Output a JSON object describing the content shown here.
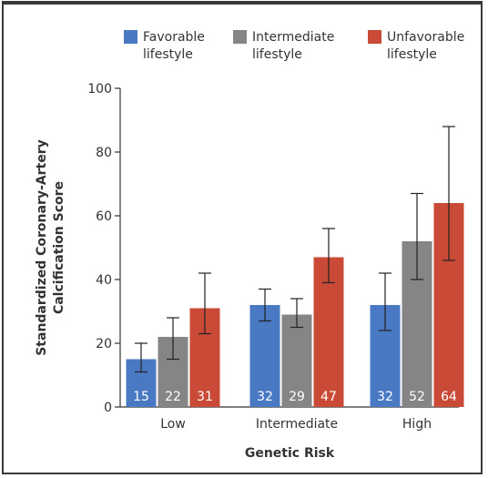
{
  "chart_data": {
    "type": "bar",
    "title": "",
    "xlabel": "Genetic Risk",
    "ylabel": "Standardized Coronary-Artery Calcification Score",
    "ylabel_lines": [
      "Standardized Coronary-Artery",
      "Calcification Score"
    ],
    "ylim": [
      0,
      100
    ],
    "yticks": [
      "0",
      "20",
      "40",
      "60",
      "80",
      "100"
    ],
    "categories": [
      "Low",
      "Intermediate",
      "High"
    ],
    "legend_position": "top",
    "series": [
      {
        "name": "Favorable lifestyle",
        "legend_lines": [
          "Favorable",
          "lifestyle"
        ],
        "color": "#4a79c4",
        "values": [
          15,
          32,
          32
        ],
        "labels": [
          "15",
          "32",
          "32"
        ],
        "err_low": [
          11,
          27,
          24
        ],
        "err_high": [
          20,
          37,
          42
        ]
      },
      {
        "name": "Intermediate lifestyle",
        "legend_lines": [
          "Intermediate",
          "lifestyle"
        ],
        "color": "#858585",
        "values": [
          22,
          29,
          52
        ],
        "labels": [
          "22",
          "29",
          "52"
        ],
        "err_low": [
          15,
          25,
          40
        ],
        "err_high": [
          28,
          34,
          67
        ]
      },
      {
        "name": "Unfavorable lifestyle",
        "legend_lines": [
          "Unfavorable",
          "lifestyle"
        ],
        "color": "#c94b37",
        "values": [
          31,
          47,
          64
        ],
        "labels": [
          "31",
          "47",
          "64"
        ],
        "err_low": [
          23,
          39,
          46
        ],
        "err_high": [
          42,
          56,
          88
        ]
      }
    ]
  }
}
